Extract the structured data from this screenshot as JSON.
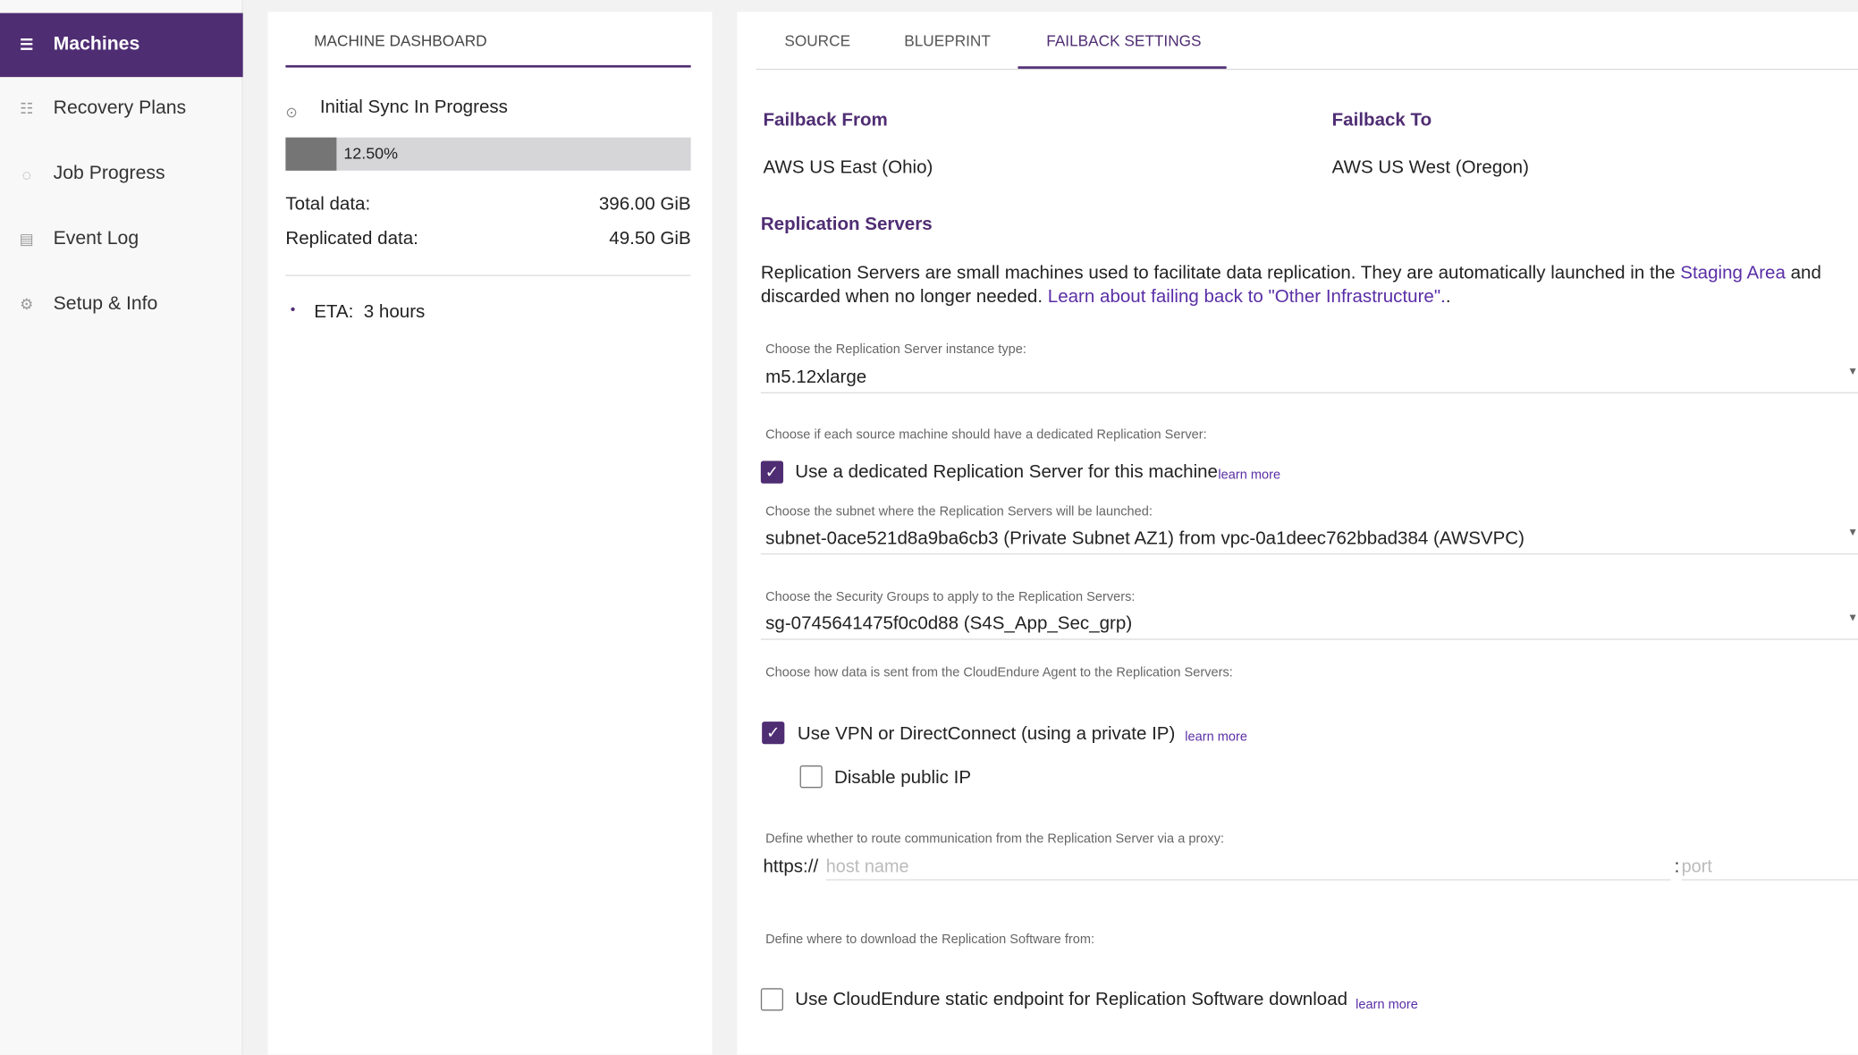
{
  "sidebar": {
    "items": [
      {
        "label": "Machines",
        "icon": "server-icon",
        "active": true
      },
      {
        "label": "Recovery Plans",
        "icon": "checklist-icon"
      },
      {
        "label": "Job Progress",
        "icon": "spinner-icon"
      },
      {
        "label": "Event Log",
        "icon": "document-icon"
      },
      {
        "label": "Setup & Info",
        "icon": "gear-icon"
      }
    ]
  },
  "dashboard": {
    "tab": "MACHINE DASHBOARD",
    "status": "Initial Sync In Progress",
    "progress_percent": 12.5,
    "progress_label": "12.50%",
    "total_label": "Total data:",
    "total_value": "396.00 GiB",
    "replicated_label": "Replicated data:",
    "replicated_value": "49.50 GiB",
    "eta_label": "ETA:",
    "eta_value": "3 hours"
  },
  "settings": {
    "tabs": [
      "SOURCE",
      "BLUEPRINT",
      "FAILBACK SETTINGS"
    ],
    "active_tab": "FAILBACK SETTINGS",
    "from_label": "Failback From",
    "from_value": "AWS US East (Ohio)",
    "to_label": "Failback To",
    "to_value": "AWS US West (Oregon)",
    "section": "Replication Servers",
    "desc1": "Replication Servers are small machines used to facilitate data replication.  They are automatically launched in the ",
    "desc_link1": "Staging Area",
    "desc2": " and",
    "desc3": "discarded when no longer needed.  ",
    "desc_link2": "Learn about failing back to \"Other Infrastructure\".",
    "desc4": ".",
    "instance_label": "Choose the Replication Server instance type:",
    "instance_value": "m5.12xlarge",
    "dedicated_label": "Choose if each source machine should have a dedicated Replication Server:",
    "dedicated_cb": "Use a dedicated Replication Server for this machine",
    "learn_more": "learn more",
    "subnet_label": "Choose the subnet where the Replication Servers will be launched:",
    "subnet_value": "subnet-0ace521d8a9ba6cb3 (Private Subnet AZ1) from vpc-0a1deec762bbad384 (AWSVPC)",
    "sg_label": "Choose the Security Groups to apply to the Replication Servers:",
    "sg_value": "sg-0745641475f0c0d88 (S4S_App_Sec_grp)",
    "data_label": "Choose how data is sent from the CloudEndure Agent to the Replication Servers:",
    "vpn_cb": "Use VPN or DirectConnect (using a private IP)",
    "public_ip_cb": "Disable public IP",
    "proxy_label": "Define whether to route communication from the Replication Server via a proxy:",
    "proxy_prefix": "https://",
    "host_placeholder": "host name",
    "port_sep": ":",
    "port_placeholder": "port",
    "download_label": "Define where to download the Replication Software from:",
    "endpoint_cb": "Use CloudEndure static endpoint for Replication Software download"
  },
  "colors": {
    "accent": "#4f2d73",
    "link": "#5a2ea6"
  }
}
